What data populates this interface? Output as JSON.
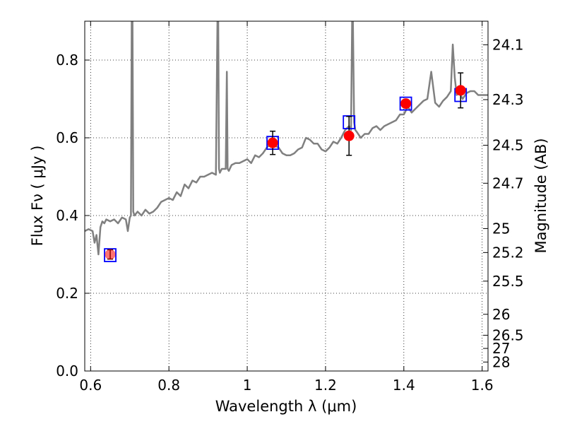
{
  "chart_data": {
    "type": "scatter",
    "xlabel": "Wavelength  λ (μm)",
    "ylabel": "Flux  Fν  ( μJy )",
    "ylabel_right": "Magnitude (AB)",
    "xlim": [
      0.585,
      1.615
    ],
    "ylim": [
      0.0,
      0.9
    ],
    "grid": true,
    "x_ticks": [
      0.6,
      0.8,
      1.0,
      1.2,
      1.4,
      1.6
    ],
    "x_tick_labels": [
      "0.6",
      "0.8",
      "1",
      "1.2",
      "1.4",
      "1.6"
    ],
    "y_ticks": [
      0.0,
      0.2,
      0.4,
      0.6,
      0.8
    ],
    "y_tick_labels": [
      "0.0",
      "0.2",
      "0.4",
      "0.6",
      "0.8"
    ],
    "mag_ticks": [
      {
        "label": "24.1",
        "flux": 0.8394
      },
      {
        "label": "24.3",
        "flux": 0.6982
      },
      {
        "label": "24.5",
        "flux": 0.5808
      },
      {
        "label": "24.7",
        "flux": 0.4831
      },
      {
        "label": "25",
        "flux": 0.3665
      },
      {
        "label": "25.2",
        "flux": 0.3048
      },
      {
        "label": "25.5",
        "flux": 0.2312
      },
      {
        "label": "26",
        "flux": 0.1459
      },
      {
        "label": "26.5",
        "flux": 0.092
      },
      {
        "label": "27",
        "flux": 0.0581
      },
      {
        "label": "28",
        "flux": 0.0231
      }
    ],
    "series": [
      {
        "kind": "spectrum",
        "color": "#808080",
        "x": [
          0.585,
          0.595,
          0.605,
          0.61,
          0.615,
          0.62,
          0.625,
          0.63,
          0.635,
          0.64,
          0.65,
          0.66,
          0.67,
          0.68,
          0.69,
          0.695,
          0.7,
          0.703,
          0.705,
          0.707,
          0.709,
          0.712,
          0.72,
          0.73,
          0.74,
          0.75,
          0.76,
          0.77,
          0.78,
          0.79,
          0.8,
          0.81,
          0.82,
          0.83,
          0.84,
          0.85,
          0.86,
          0.87,
          0.88,
          0.89,
          0.9,
          0.91,
          0.92,
          0.924,
          0.926,
          0.928,
          0.93,
          0.935,
          0.945,
          0.948,
          0.95,
          0.953,
          0.96,
          0.97,
          0.98,
          0.99,
          1.0,
          1.01,
          1.02,
          1.03,
          1.04,
          1.05,
          1.06,
          1.07,
          1.08,
          1.09,
          1.1,
          1.11,
          1.12,
          1.13,
          1.14,
          1.15,
          1.16,
          1.17,
          1.18,
          1.19,
          1.2,
          1.21,
          1.22,
          1.23,
          1.24,
          1.25,
          1.26,
          1.265,
          1.268,
          1.27,
          1.273,
          1.276,
          1.28,
          1.29,
          1.3,
          1.31,
          1.32,
          1.33,
          1.34,
          1.35,
          1.36,
          1.37,
          1.38,
          1.39,
          1.4,
          1.41,
          1.42,
          1.43,
          1.44,
          1.45,
          1.46,
          1.47,
          1.48,
          1.49,
          1.5,
          1.51,
          1.52,
          1.525,
          1.53,
          1.535,
          1.54,
          1.55,
          1.56,
          1.57,
          1.58,
          1.59,
          1.6,
          1.615
        ],
        "y": [
          0.36,
          0.365,
          0.36,
          0.33,
          0.35,
          0.3,
          0.37,
          0.385,
          0.38,
          0.39,
          0.385,
          0.39,
          0.38,
          0.395,
          0.39,
          0.36,
          0.395,
          0.4,
          0.9,
          0.9,
          0.41,
          0.4,
          0.41,
          0.4,
          0.415,
          0.405,
          0.41,
          0.42,
          0.435,
          0.44,
          0.445,
          0.44,
          0.46,
          0.45,
          0.48,
          0.47,
          0.49,
          0.485,
          0.5,
          0.5,
          0.505,
          0.51,
          0.505,
          0.9,
          0.9,
          0.52,
          0.51,
          0.52,
          0.52,
          0.77,
          0.52,
          0.515,
          0.53,
          0.535,
          0.535,
          0.54,
          0.545,
          0.535,
          0.555,
          0.55,
          0.56,
          0.575,
          0.585,
          0.58,
          0.575,
          0.56,
          0.555,
          0.555,
          0.56,
          0.57,
          0.575,
          0.6,
          0.595,
          0.585,
          0.585,
          0.57,
          0.565,
          0.575,
          0.59,
          0.585,
          0.6,
          0.62,
          0.63,
          0.62,
          0.9,
          0.9,
          0.64,
          0.62,
          0.615,
          0.6,
          0.61,
          0.61,
          0.625,
          0.63,
          0.62,
          0.63,
          0.635,
          0.64,
          0.645,
          0.66,
          0.66,
          0.68,
          0.665,
          0.675,
          0.685,
          0.695,
          0.7,
          0.77,
          0.69,
          0.68,
          0.695,
          0.705,
          0.72,
          0.84,
          0.755,
          0.71,
          0.72,
          0.7,
          0.715,
          0.72,
          0.72,
          0.71,
          0.71,
          0.71
        ]
      },
      {
        "kind": "observed",
        "marker": "circle",
        "color": "#ff0000",
        "x": [
          0.65,
          1.065,
          1.26,
          1.405,
          1.545
        ],
        "y": [
          0.3,
          0.587,
          0.605,
          0.688,
          0.722
        ],
        "yerr": [
          0.012,
          0.03,
          0.05,
          0.01,
          0.045
        ]
      },
      {
        "kind": "model",
        "marker": "square",
        "color": "#0000ff",
        "x": [
          0.65,
          1.065,
          1.26,
          1.405,
          1.545
        ],
        "y": [
          0.298,
          0.587,
          0.64,
          0.688,
          0.71
        ]
      }
    ]
  }
}
